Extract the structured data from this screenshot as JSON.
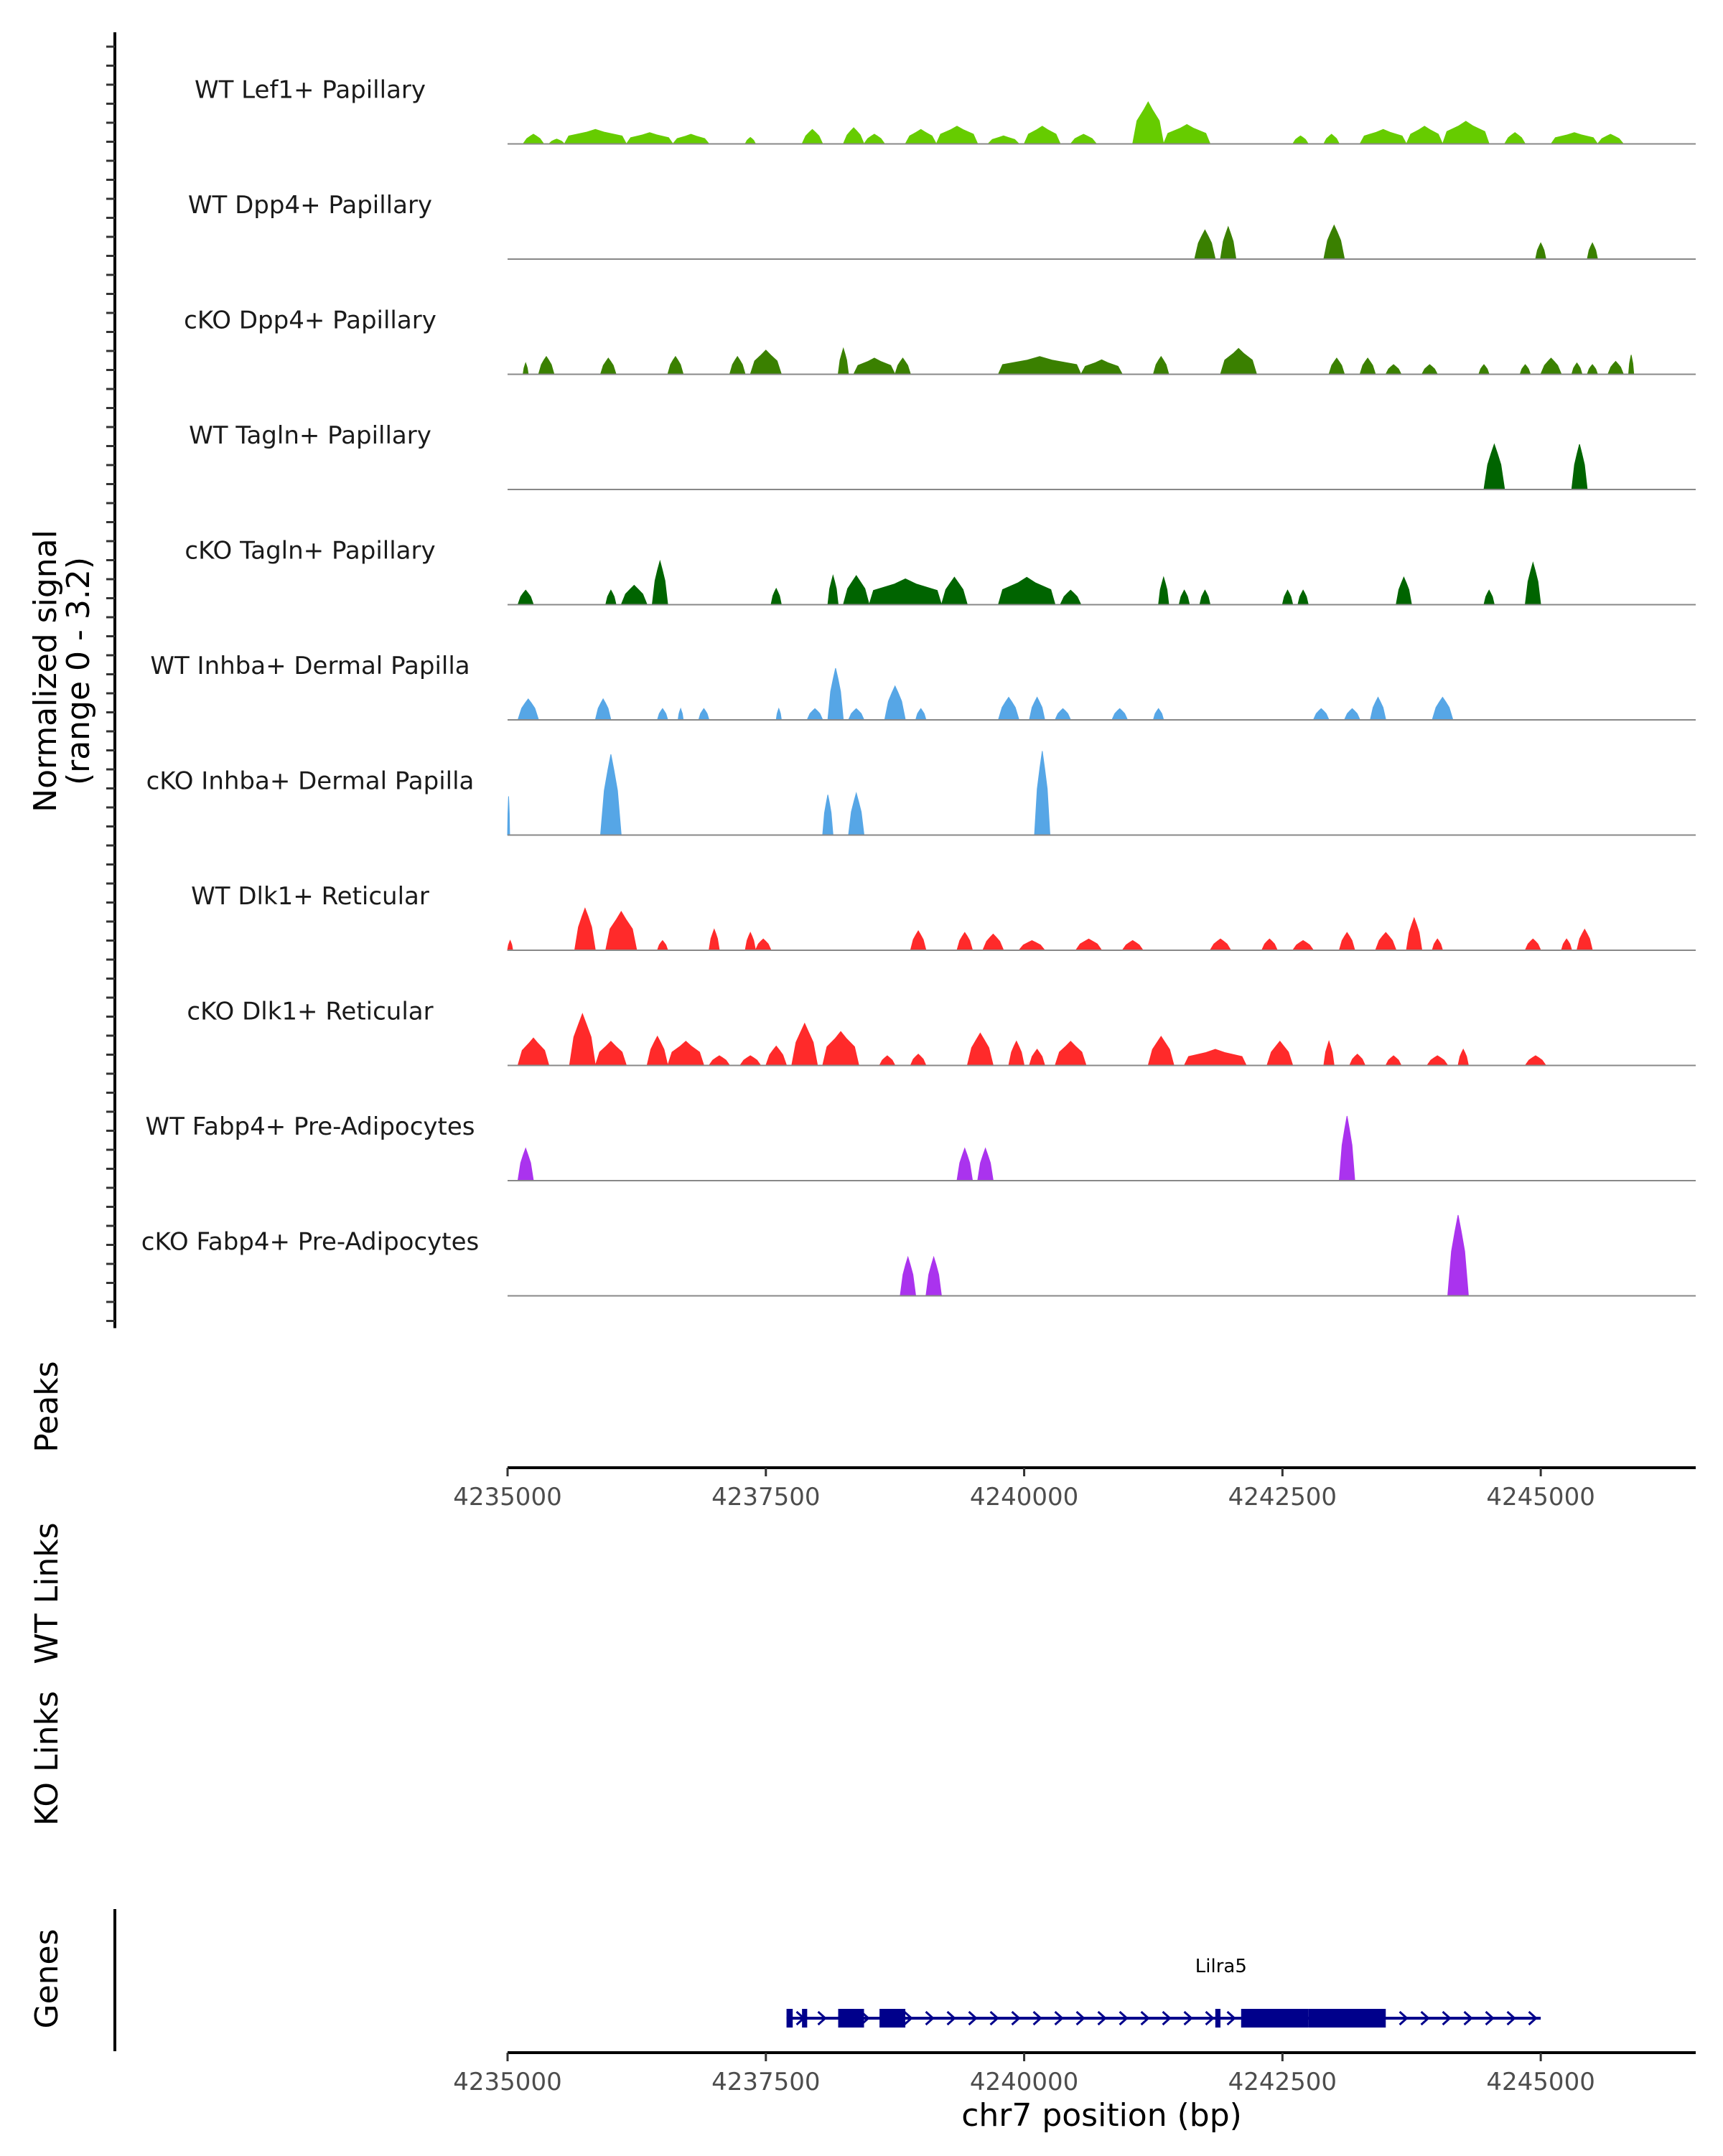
{
  "chart_data": {
    "type": "area",
    "title": "",
    "region": "chr7",
    "xlabel": "chr7 position (bp)",
    "xlim": [
      4235000,
      4246500
    ],
    "x_ticks": [
      4235000,
      4237500,
      4240000,
      4242500,
      4245000
    ],
    "x_tick_labels": [
      "4235000",
      "4237500",
      "4240000",
      "4242500",
      "4245000"
    ],
    "coverage_ylabel": [
      "Normalized signal",
      "(range 0 - 3.2)"
    ],
    "ylim": [
      0,
      3.2
    ],
    "peaks_label": "Peaks",
    "wt_links_label": "WT Links",
    "ko_links_label": "KO Links",
    "genes_label": "Genes",
    "tracks": [
      {
        "name": "WT Lef1+ Papillary",
        "color": "#66CC00",
        "peaks": [
          [
            4235150,
            4235350,
            0.3
          ],
          [
            4235400,
            4235550,
            0.15
          ],
          [
            4235550,
            4236150,
            0.45
          ],
          [
            4236150,
            4236600,
            0.35
          ],
          [
            4236600,
            4236950,
            0.3
          ],
          [
            4237300,
            4237400,
            0.2
          ],
          [
            4237850,
            4238050,
            0.45
          ],
          [
            4238250,
            4238450,
            0.5
          ],
          [
            4238450,
            4238650,
            0.3
          ],
          [
            4238850,
            4239150,
            0.45
          ],
          [
            4239150,
            4239550,
            0.55
          ],
          [
            4239650,
            4239950,
            0.25
          ],
          [
            4240000,
            4240350,
            0.55
          ],
          [
            4240450,
            4240700,
            0.3
          ],
          [
            4241050,
            4241350,
            1.3
          ],
          [
            4241350,
            4241800,
            0.6
          ],
          [
            4242600,
            4242750,
            0.25
          ],
          [
            4242900,
            4243050,
            0.3
          ],
          [
            4243250,
            4243700,
            0.45
          ],
          [
            4243700,
            4244050,
            0.55
          ],
          [
            4244050,
            4244500,
            0.7
          ],
          [
            4244650,
            4244850,
            0.35
          ],
          [
            4245100,
            4245550,
            0.35
          ],
          [
            4245550,
            4245800,
            0.3
          ]
        ]
      },
      {
        "name": "WT Dpp4+ Papillary",
        "color": "#3A8000",
        "peaks": [
          [
            4241650,
            4241850,
            0.9
          ],
          [
            4241900,
            4242050,
            1.0
          ],
          [
            4242900,
            4243100,
            1.05
          ],
          [
            4244950,
            4245050,
            0.5
          ],
          [
            4245450,
            4245550,
            0.5
          ]
        ]
      },
      {
        "name": "cKO Dpp4+ Papillary",
        "color": "#3A8000",
        "peaks": [
          [
            4235150,
            4235200,
            0.35
          ],
          [
            4235300,
            4235450,
            0.55
          ],
          [
            4235900,
            4236050,
            0.5
          ],
          [
            4236550,
            4236700,
            0.55
          ],
          [
            4237150,
            4237300,
            0.55
          ],
          [
            4237350,
            4237650,
            0.75
          ],
          [
            4238200,
            4238300,
            0.8
          ],
          [
            4238350,
            4238750,
            0.5
          ],
          [
            4238750,
            4238900,
            0.5
          ],
          [
            4239750,
            4240550,
            0.55
          ],
          [
            4240550,
            4240950,
            0.45
          ],
          [
            4241250,
            4241400,
            0.55
          ],
          [
            4241900,
            4242250,
            0.8
          ],
          [
            4242950,
            4243100,
            0.5
          ],
          [
            4243250,
            4243400,
            0.5
          ],
          [
            4243500,
            4243650,
            0.3
          ],
          [
            4243850,
            4244000,
            0.3
          ],
          [
            4244400,
            4244500,
            0.3
          ],
          [
            4244800,
            4244900,
            0.3
          ],
          [
            4245000,
            4245200,
            0.5
          ],
          [
            4245300,
            4245400,
            0.35
          ],
          [
            4245450,
            4245550,
            0.3
          ],
          [
            4245650,
            4245800,
            0.4
          ],
          [
            4245850,
            4245900,
            0.6
          ]
        ]
      },
      {
        "name": "WT Tagln+ Papillary",
        "color": "#006400",
        "peaks": [
          [
            4244450,
            4244650,
            1.4
          ],
          [
            4245300,
            4245450,
            1.4
          ]
        ]
      },
      {
        "name": "cKO Tagln+ Papillary",
        "color": "#006400",
        "peaks": [
          [
            4235100,
            4235250,
            0.45
          ],
          [
            4235950,
            4236050,
            0.45
          ],
          [
            4236100,
            4236350,
            0.6
          ],
          [
            4236400,
            4236550,
            1.35
          ],
          [
            4237550,
            4237650,
            0.5
          ],
          [
            4238100,
            4238200,
            0.9
          ],
          [
            4238250,
            4238500,
            0.9
          ],
          [
            4238500,
            4239200,
            0.8
          ],
          [
            4239200,
            4239450,
            0.85
          ],
          [
            4239750,
            4240300,
            0.85
          ],
          [
            4240350,
            4240550,
            0.45
          ],
          [
            4241300,
            4241400,
            0.85
          ],
          [
            4241500,
            4241600,
            0.45
          ],
          [
            4241700,
            4241800,
            0.45
          ],
          [
            4242500,
            4242600,
            0.45
          ],
          [
            4242650,
            4242750,
            0.45
          ],
          [
            4243600,
            4243750,
            0.85
          ],
          [
            4244450,
            4244550,
            0.45
          ],
          [
            4244850,
            4245000,
            1.3
          ]
        ]
      },
      {
        "name": "WT Inhba+ Dermal Papilla",
        "color": "#56A6E6",
        "peaks": [
          [
            4235100,
            4235300,
            0.65
          ],
          [
            4235850,
            4236000,
            0.65
          ],
          [
            4236450,
            4236550,
            0.35
          ],
          [
            4236650,
            4236700,
            0.35
          ],
          [
            4236850,
            4236950,
            0.35
          ],
          [
            4237600,
            4237650,
            0.35
          ],
          [
            4237900,
            4238050,
            0.35
          ],
          [
            4238100,
            4238250,
            1.6
          ],
          [
            4238300,
            4238450,
            0.35
          ],
          [
            4238650,
            4238850,
            1.05
          ],
          [
            4238950,
            4239050,
            0.35
          ],
          [
            4239750,
            4239950,
            0.7
          ],
          [
            4240050,
            4240200,
            0.7
          ],
          [
            4240300,
            4240450,
            0.35
          ],
          [
            4240850,
            4241000,
            0.35
          ],
          [
            4241250,
            4241350,
            0.35
          ],
          [
            4242800,
            4242950,
            0.35
          ],
          [
            4243100,
            4243250,
            0.35
          ],
          [
            4243350,
            4243500,
            0.7
          ],
          [
            4243950,
            4244150,
            0.7
          ]
        ]
      },
      {
        "name": "cKO Inhba+ Dermal Papilla",
        "color": "#56A6E6",
        "peaks": [
          [
            4235000,
            4235020,
            1.2
          ],
          [
            4235900,
            4236100,
            2.5
          ],
          [
            4238050,
            4238150,
            1.25
          ],
          [
            4238300,
            4238450,
            1.3
          ],
          [
            4240100,
            4240250,
            2.6
          ]
        ]
      },
      {
        "name": "WT Dlk1+ Reticular",
        "color": "#FF2A2A",
        "peaks": [
          [
            4235000,
            4235050,
            0.3
          ],
          [
            4235650,
            4235850,
            1.3
          ],
          [
            4235950,
            4236250,
            1.2
          ],
          [
            4236450,
            4236550,
            0.3
          ],
          [
            4236950,
            4237050,
            0.65
          ],
          [
            4237300,
            4237400,
            0.55
          ],
          [
            4237400,
            4237550,
            0.35
          ],
          [
            4238900,
            4239050,
            0.6
          ],
          [
            4239350,
            4239500,
            0.55
          ],
          [
            4239600,
            4239800,
            0.5
          ],
          [
            4239950,
            4240200,
            0.3
          ],
          [
            4240500,
            4240750,
            0.35
          ],
          [
            4240950,
            4241150,
            0.3
          ],
          [
            4241800,
            4242000,
            0.35
          ],
          [
            4242300,
            4242450,
            0.35
          ],
          [
            4242600,
            4242800,
            0.3
          ],
          [
            4243050,
            4243200,
            0.55
          ],
          [
            4243400,
            4243600,
            0.55
          ],
          [
            4243700,
            4243850,
            1.0
          ],
          [
            4243950,
            4244050,
            0.35
          ],
          [
            4244850,
            4245000,
            0.35
          ],
          [
            4245200,
            4245300,
            0.35
          ],
          [
            4245350,
            4245500,
            0.65
          ]
        ]
      },
      {
        "name": "cKO Dlk1+ Reticular",
        "color": "#FF2A2A",
        "peaks": [
          [
            4235100,
            4235400,
            0.85
          ],
          [
            4235600,
            4235850,
            1.6
          ],
          [
            4235850,
            4236150,
            0.75
          ],
          [
            4236350,
            4236550,
            0.9
          ],
          [
            4236550,
            4236900,
            0.75
          ],
          [
            4236950,
            4237150,
            0.3
          ],
          [
            4237250,
            4237450,
            0.3
          ],
          [
            4237500,
            4237700,
            0.6
          ],
          [
            4237750,
            4238000,
            1.3
          ],
          [
            4238050,
            4238400,
            1.05
          ],
          [
            4238600,
            4238750,
            0.3
          ],
          [
            4238900,
            4239050,
            0.35
          ],
          [
            4239450,
            4239700,
            1.0
          ],
          [
            4239850,
            4240000,
            0.75
          ],
          [
            4240050,
            4240200,
            0.5
          ],
          [
            4240300,
            4240600,
            0.75
          ],
          [
            4241200,
            4241450,
            0.9
          ],
          [
            4241550,
            4242150,
            0.5
          ],
          [
            4242350,
            4242600,
            0.75
          ],
          [
            4242900,
            4243000,
            0.75
          ],
          [
            4243150,
            4243300,
            0.35
          ],
          [
            4243500,
            4243650,
            0.3
          ],
          [
            4243900,
            4244100,
            0.3
          ],
          [
            4244200,
            4244300,
            0.5
          ],
          [
            4244850,
            4245050,
            0.3
          ]
        ]
      },
      {
        "name": "WT Fabp4+ Pre-Adipocytes",
        "color": "#AA33EE",
        "peaks": [
          [
            4235100,
            4235250,
            1.0
          ],
          [
            4239350,
            4239500,
            1.0
          ],
          [
            4239550,
            4239700,
            1.0
          ],
          [
            4243050,
            4243200,
            2.0
          ]
        ]
      },
      {
        "name": "cKO Fabp4+ Pre-Adipocytes",
        "color": "#AA33EE",
        "peaks": [
          [
            4238800,
            4238950,
            1.2
          ],
          [
            4239050,
            4239200,
            1.2
          ],
          [
            4244100,
            4244300,
            2.5
          ]
        ]
      }
    ],
    "gene": {
      "name": "Lilra5",
      "color": "#00008B",
      "start": 4237700,
      "end": 4245000,
      "strand": "+",
      "exons": [
        [
          4237700,
          4237760
        ],
        [
          4237850,
          4237900
        ],
        [
          4238200,
          4238450
        ],
        [
          4238600,
          4238850
        ],
        [
          4241850,
          4241900
        ],
        [
          4242100,
          4242750
        ],
        [
          4242750,
          4243500
        ]
      ]
    }
  }
}
